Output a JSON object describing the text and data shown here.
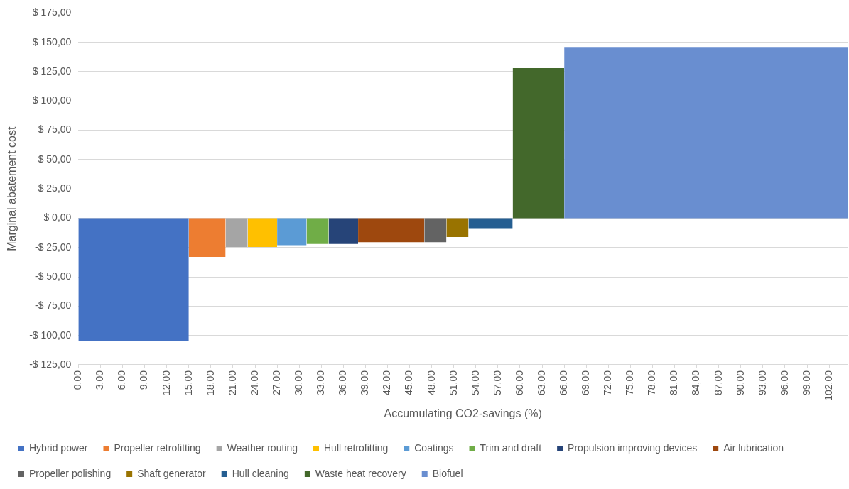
{
  "chart_data": {
    "type": "area",
    "xlabel": "Accumulating CO2-savings (%)",
    "ylabel": "Marginal abatement cost",
    "xlim": [
      0,
      104.5
    ],
    "xticks": [
      {
        "value": 0,
        "label": "0,00"
      },
      {
        "value": 3,
        "label": "3,00"
      },
      {
        "value": 6,
        "label": "6,00"
      },
      {
        "value": 9,
        "label": "9,00"
      },
      {
        "value": 12,
        "label": "12,00"
      },
      {
        "value": 15,
        "label": "15,00"
      },
      {
        "value": 18,
        "label": "18,00"
      },
      {
        "value": 21,
        "label": "21,00"
      },
      {
        "value": 24,
        "label": "24,00"
      },
      {
        "value": 27,
        "label": "27,00"
      },
      {
        "value": 30,
        "label": "30,00"
      },
      {
        "value": 33,
        "label": "33,00"
      },
      {
        "value": 36,
        "label": "36,00"
      },
      {
        "value": 39,
        "label": "39,00"
      },
      {
        "value": 42,
        "label": "42,00"
      },
      {
        "value": 45,
        "label": "45,00"
      },
      {
        "value": 48,
        "label": "48,00"
      },
      {
        "value": 51,
        "label": "51,00"
      },
      {
        "value": 54,
        "label": "54,00"
      },
      {
        "value": 57,
        "label": "57,00"
      },
      {
        "value": 60,
        "label": "60,00"
      },
      {
        "value": 63,
        "label": "63,00"
      },
      {
        "value": 66,
        "label": "66,00"
      },
      {
        "value": 69,
        "label": "69,00"
      },
      {
        "value": 72,
        "label": "72,00"
      },
      {
        "value": 75,
        "label": "75,00"
      },
      {
        "value": 78,
        "label": "78,00"
      },
      {
        "value": 81,
        "label": "81,00"
      },
      {
        "value": 84,
        "label": "84,00"
      },
      {
        "value": 87,
        "label": "87,00"
      },
      {
        "value": 90,
        "label": "90,00"
      },
      {
        "value": 93,
        "label": "93,00"
      },
      {
        "value": 96,
        "label": "96,00"
      },
      {
        "value": 99,
        "label": "99,00"
      },
      {
        "value": 102,
        "label": "102,00"
      }
    ],
    "ylim": [
      -125,
      175
    ],
    "yticks": [
      {
        "value": -125,
        "label": "-$ 125,00"
      },
      {
        "value": -100,
        "label": "-$ 100,00"
      },
      {
        "value": -75,
        "label": "-$ 75,00"
      },
      {
        "value": -50,
        "label": "-$ 50,00"
      },
      {
        "value": -25,
        "label": "-$ 25,00"
      },
      {
        "value": 0,
        "label": "$ 0,00"
      },
      {
        "value": 25,
        "label": "$ 25,00"
      },
      {
        "value": 50,
        "label": "$ 50,00"
      },
      {
        "value": 75,
        "label": "$ 75,00"
      },
      {
        "value": 100,
        "label": "$ 100,00"
      },
      {
        "value": 125,
        "label": "$ 125,00"
      },
      {
        "value": 150,
        "label": "$ 150,00"
      },
      {
        "value": 175,
        "label": "$ 175,00"
      }
    ],
    "grid": "y",
    "legend": "bottom",
    "series": [
      {
        "name": "Hybrid power",
        "color": "#4472c4",
        "x": [
          0,
          15
        ],
        "values": [
          -105,
          -105
        ]
      },
      {
        "name": "Propeller retrofitting",
        "color": "#ed7d31",
        "x": [
          15,
          20
        ],
        "values": [
          -33,
          -33
        ]
      },
      {
        "name": "Weather routing",
        "color": "#a5a5a5",
        "x": [
          20,
          23
        ],
        "values": [
          -24.5,
          -24.5
        ]
      },
      {
        "name": "Hull retrofitting",
        "color": "#ffc000",
        "x": [
          23,
          27
        ],
        "values": [
          -24.5,
          -24.5
        ]
      },
      {
        "name": "Coatings",
        "color": "#5b9bd5",
        "x": [
          27,
          31
        ],
        "values": [
          -23,
          -23
        ]
      },
      {
        "name": "Trim and draft",
        "color": "#70ad47",
        "x": [
          31,
          34
        ],
        "values": [
          -22,
          -22
        ]
      },
      {
        "name": "Propulsion improving devices",
        "color": "#264478",
        "x": [
          34,
          38
        ],
        "values": [
          -22,
          -22
        ]
      },
      {
        "name": "Air lubrication",
        "color": "#9e480e",
        "x": [
          38,
          47
        ],
        "values": [
          -20.5,
          -20.5
        ]
      },
      {
        "name": "Propeller polishing",
        "color": "#636363",
        "x": [
          47,
          50
        ],
        "values": [
          -20.5,
          -20.5
        ]
      },
      {
        "name": "Shaft generator",
        "color": "#997300",
        "x": [
          50,
          53
        ],
        "values": [
          -16,
          -16
        ]
      },
      {
        "name": "Hull cleaning",
        "color": "#255e91",
        "x": [
          53,
          59
        ],
        "values": [
          -8.5,
          -8.5
        ]
      },
      {
        "name": "Waste heat recovery",
        "color": "#43682b",
        "x": [
          59,
          66
        ],
        "values": [
          128,
          128
        ]
      },
      {
        "name": "Biofuel",
        "color": "#698ed0",
        "x": [
          66,
          104.5
        ],
        "values": [
          146,
          146
        ]
      }
    ]
  }
}
